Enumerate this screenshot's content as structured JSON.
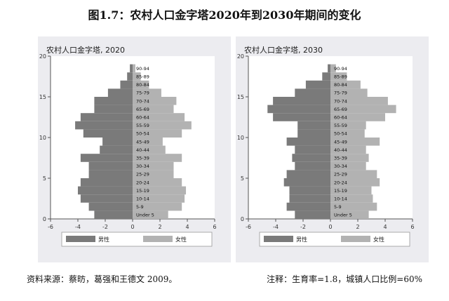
{
  "figure_title": "图1.7：农村人口金字塔2020年到2030年期间的变化",
  "source_note": "资料来源：蔡昉，葛强和王德文 2009。",
  "assumption_note": "注释：生育率=1.8，城镇人口比例=60%",
  "colors": {
    "male": "#7a7a7a",
    "female": "#b2b2b2",
    "panel_bg": "#ececf0",
    "plot_bg": "#ffffff"
  },
  "chart_data": [
    {
      "type": "bar",
      "orientation": "horizontal-pyramid",
      "title": "农村人口金字塔, 2020",
      "xlim": [
        -6,
        6
      ],
      "ylim": [
        0,
        20
      ],
      "x_ticks": [
        "-6",
        "-4",
        "-2",
        "0",
        "2",
        "4",
        "6"
      ],
      "y_ticks": [
        "0",
        "5",
        "10",
        "15",
        "20"
      ],
      "categories": [
        "Under 5",
        "5-9",
        "10-14",
        "15-19",
        "20-24",
        "25-29",
        "30-34",
        "35-39",
        "40-44",
        "45-49",
        "50-54",
        "55-59",
        "60-64",
        "65-69",
        "70-74",
        "75-79",
        "80-84",
        "85-89",
        "90-94"
      ],
      "series": [
        {
          "name": "男性",
          "values": [
            -2.8,
            -3.2,
            -3.8,
            -4.0,
            -3.8,
            -3.2,
            -3.2,
            -3.8,
            -2.4,
            -2.2,
            -3.6,
            -4.2,
            -3.8,
            -2.8,
            -2.8,
            -1.8,
            -0.9,
            -0.4,
            -0.2
          ]
        },
        {
          "name": "女性",
          "values": [
            2.6,
            3.6,
            3.8,
            3.9,
            3.6,
            3.0,
            3.0,
            3.6,
            2.4,
            2.2,
            3.6,
            4.3,
            3.8,
            3.0,
            3.2,
            2.1,
            1.2,
            0.6,
            0.2
          ]
        }
      ],
      "grid": false,
      "legend_position": "bottom"
    },
    {
      "type": "bar",
      "orientation": "horizontal-pyramid",
      "title": "农村人口金字塔, 2030",
      "xlim": [
        -6,
        6
      ],
      "ylim": [
        0,
        20
      ],
      "x_ticks": [
        "-6",
        "-4",
        "-2",
        "0",
        "2",
        "4",
        "6"
      ],
      "y_ticks": [
        "0",
        "5",
        "10",
        "15",
        "20"
      ],
      "categories": [
        "Under 5",
        "5-9",
        "10-14",
        "15-19",
        "20-24",
        "25-29",
        "30-34",
        "35-39",
        "40-44",
        "45-49",
        "50-54",
        "55-59",
        "60-64",
        "65-69",
        "70-74",
        "75-79",
        "80-84",
        "85-89",
        "90-94"
      ],
      "series": [
        {
          "name": "男性",
          "values": [
            -2.6,
            -3.2,
            -3.0,
            -3.0,
            -3.4,
            -3.2,
            -2.6,
            -2.8,
            -2.6,
            -3.2,
            -2.4,
            -2.4,
            -4.2,
            -4.6,
            -4.2,
            -2.6,
            -1.8,
            -0.6,
            -0.2
          ]
        },
        {
          "name": "女性",
          "values": [
            2.8,
            3.4,
            3.1,
            3.0,
            3.6,
            3.4,
            2.6,
            2.8,
            2.6,
            3.6,
            2.5,
            2.6,
            4.0,
            4.8,
            4.2,
            2.7,
            2.2,
            1.2,
            0.4
          ]
        }
      ],
      "grid": false,
      "legend_position": "bottom"
    }
  ]
}
